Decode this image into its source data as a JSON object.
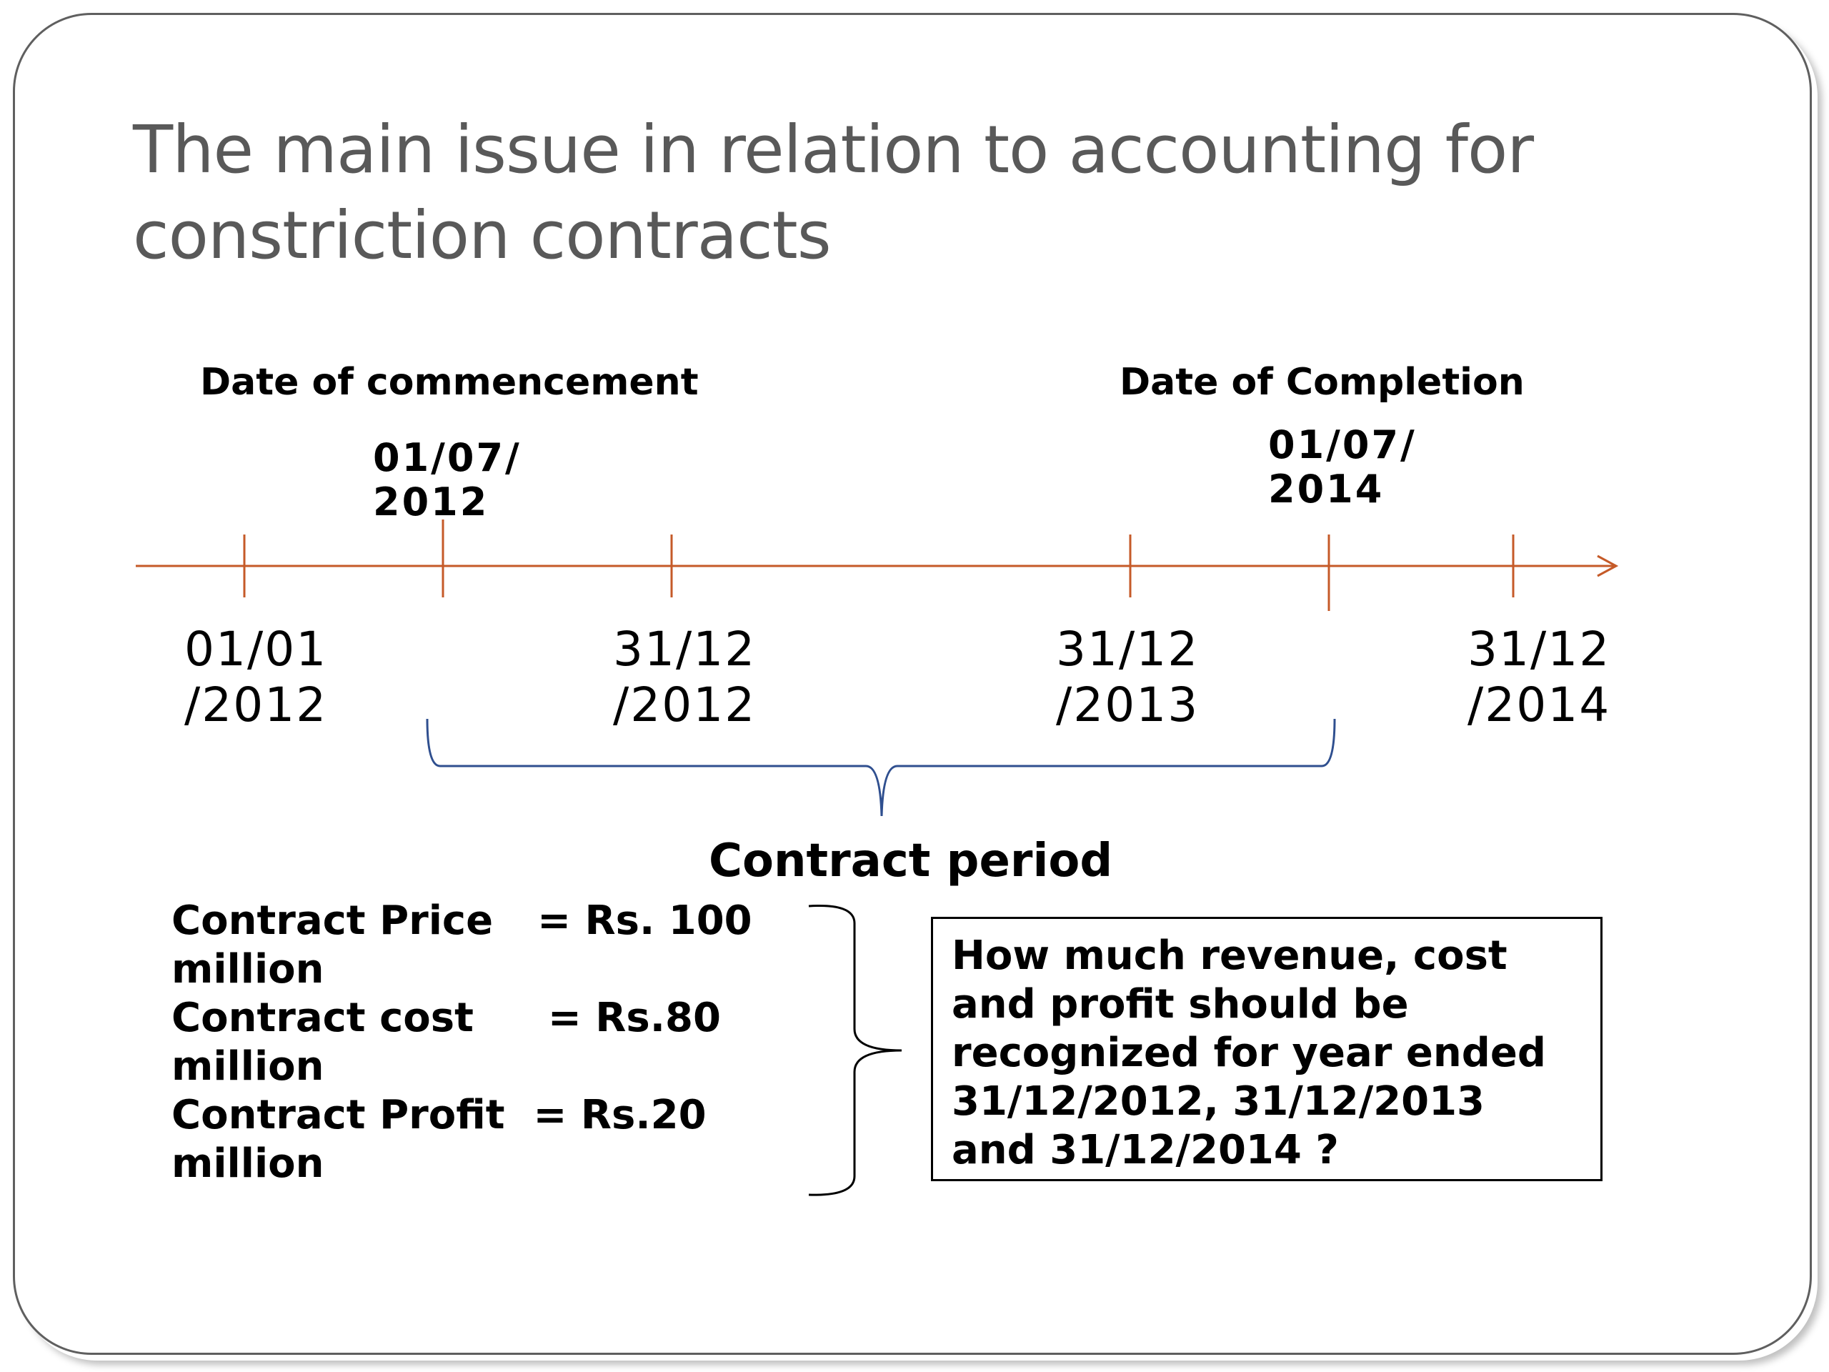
{
  "title": {
    "line1": "The main issue in relation to accounting for",
    "line2": "constriction contracts"
  },
  "labels": {
    "commencement": "Date of commencement",
    "completion": "Date of Completion",
    "commencement_date_line1": "01/07/",
    "commencement_date_line2": "2012",
    "completion_date_line1": "01/07/",
    "completion_date_line2": "2014"
  },
  "timeline_ticks": [
    {
      "line1": "01/01",
      "line2": "/2012"
    },
    {
      "line1": "31/12",
      "line2": "/2012"
    },
    {
      "line1": "31/12",
      "line2": "/2013"
    },
    {
      "line1": "31/12",
      "line2": "/2014"
    }
  ],
  "contract_period": "Contract  period",
  "facts": {
    "price_label": "Contract Price",
    "price_value": "= Rs. 100",
    "price_unit": "million",
    "cost_label": "Contract cost",
    "cost_value": "= Rs.80",
    "cost_unit": "million",
    "profit_label": "Contract Profit",
    "profit_value": "= Rs.20",
    "profit_unit": "million"
  },
  "question": {
    "line1": "How much revenue, cost",
    "line2": "and profit should be",
    "line3": "recognized for year ended",
    "line4": "31/12/2012, 31/12/2013",
    "line5": "and 31/12/2014 ?"
  },
  "colors": {
    "timeline": "#c55a28",
    "bracket": "#2f4f8f",
    "title": "#595959"
  }
}
